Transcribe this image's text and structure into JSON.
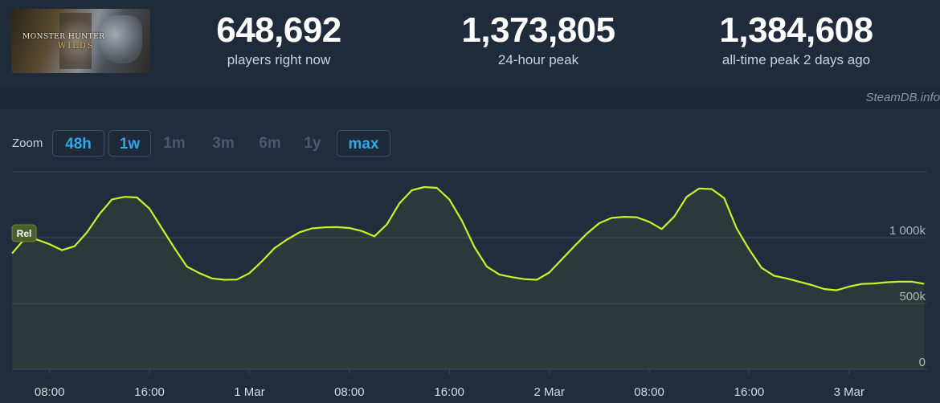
{
  "game": {
    "cover_line1": "MONSTER HUNTER",
    "cover_line2": "WILDS"
  },
  "stats": {
    "now_value": "648,692",
    "now_label": "players right now",
    "peak24_value": "1,373,805",
    "peak24_label": "24-hour peak",
    "alltime_value": "1,384,608",
    "alltime_label": "all-time peak 2 days ago"
  },
  "watermark": "SteamDB.info",
  "zoom": {
    "label": "Zoom",
    "buttons": [
      {
        "label": "48h",
        "active": true
      },
      {
        "label": "1w",
        "active": true
      },
      {
        "label": "1m",
        "active": false
      },
      {
        "label": "3m",
        "active": false
      },
      {
        "label": "6m",
        "active": false
      },
      {
        "label": "1y",
        "active": false
      },
      {
        "label": "max",
        "active": true
      }
    ]
  },
  "chart_data": {
    "type": "line",
    "title": "",
    "xlabel": "",
    "ylabel": "",
    "ylim": [
      0,
      1500000
    ],
    "y_ticks": [
      0,
      500000,
      1000000
    ],
    "y_tick_labels": [
      "0",
      "500k",
      "1 000k"
    ],
    "x_tick_labels": [
      "08:00",
      "16:00",
      "1 Mar",
      "08:00",
      "16:00",
      "2 Mar",
      "08:00",
      "16:00",
      "3 Mar"
    ],
    "x_tick_hours": [
      8,
      16,
      24,
      32,
      40,
      48,
      56,
      64,
      72
    ],
    "x_range_hours": [
      5,
      78.2
    ],
    "grid": true,
    "legend": "none",
    "badge": "Rel",
    "series": [
      {
        "color": "#c9f22c",
        "points": [
          [
            5,
            880000
          ],
          [
            6,
            990000
          ],
          [
            7,
            985000
          ],
          [
            8,
            950000
          ],
          [
            9,
            905000
          ],
          [
            10,
            935000
          ],
          [
            11,
            1040000
          ],
          [
            12,
            1180000
          ],
          [
            13,
            1290000
          ],
          [
            14,
            1310000
          ],
          [
            15,
            1305000
          ],
          [
            16,
            1220000
          ],
          [
            17,
            1070000
          ],
          [
            18,
            920000
          ],
          [
            19,
            780000
          ],
          [
            20,
            730000
          ],
          [
            21,
            690000
          ],
          [
            22,
            680000
          ],
          [
            23,
            682000
          ],
          [
            24,
            730000
          ],
          [
            25,
            820000
          ],
          [
            26,
            920000
          ],
          [
            27,
            985000
          ],
          [
            28,
            1040000
          ],
          [
            29,
            1070000
          ],
          [
            30,
            1078000
          ],
          [
            31,
            1080000
          ],
          [
            32,
            1073000
          ],
          [
            33,
            1050000
          ],
          [
            34,
            1010000
          ],
          [
            35,
            1100000
          ],
          [
            36,
            1260000
          ],
          [
            37,
            1360000
          ],
          [
            38,
            1384000
          ],
          [
            39,
            1378000
          ],
          [
            40,
            1290000
          ],
          [
            41,
            1130000
          ],
          [
            42,
            930000
          ],
          [
            43,
            780000
          ],
          [
            44,
            720000
          ],
          [
            45,
            700000
          ],
          [
            46,
            685000
          ],
          [
            47,
            680000
          ],
          [
            48,
            735000
          ],
          [
            49,
            835000
          ],
          [
            50,
            935000
          ],
          [
            51,
            1030000
          ],
          [
            52,
            1110000
          ],
          [
            53,
            1150000
          ],
          [
            54,
            1158000
          ],
          [
            55,
            1155000
          ],
          [
            56,
            1120000
          ],
          [
            57,
            1065000
          ],
          [
            58,
            1160000
          ],
          [
            59,
            1310000
          ],
          [
            60,
            1373000
          ],
          [
            61,
            1369000
          ],
          [
            62,
            1300000
          ],
          [
            63,
            1070000
          ],
          [
            64,
            910000
          ],
          [
            65,
            770000
          ],
          [
            66,
            710000
          ],
          [
            67,
            690000
          ],
          [
            68,
            665000
          ],
          [
            69,
            640000
          ],
          [
            70,
            610000
          ],
          [
            71,
            600000
          ],
          [
            72,
            628000
          ],
          [
            73,
            648000
          ],
          [
            74,
            652000
          ],
          [
            75,
            661000
          ],
          [
            76,
            665000
          ],
          [
            77,
            666000
          ],
          [
            78,
            648692
          ]
        ]
      }
    ]
  }
}
